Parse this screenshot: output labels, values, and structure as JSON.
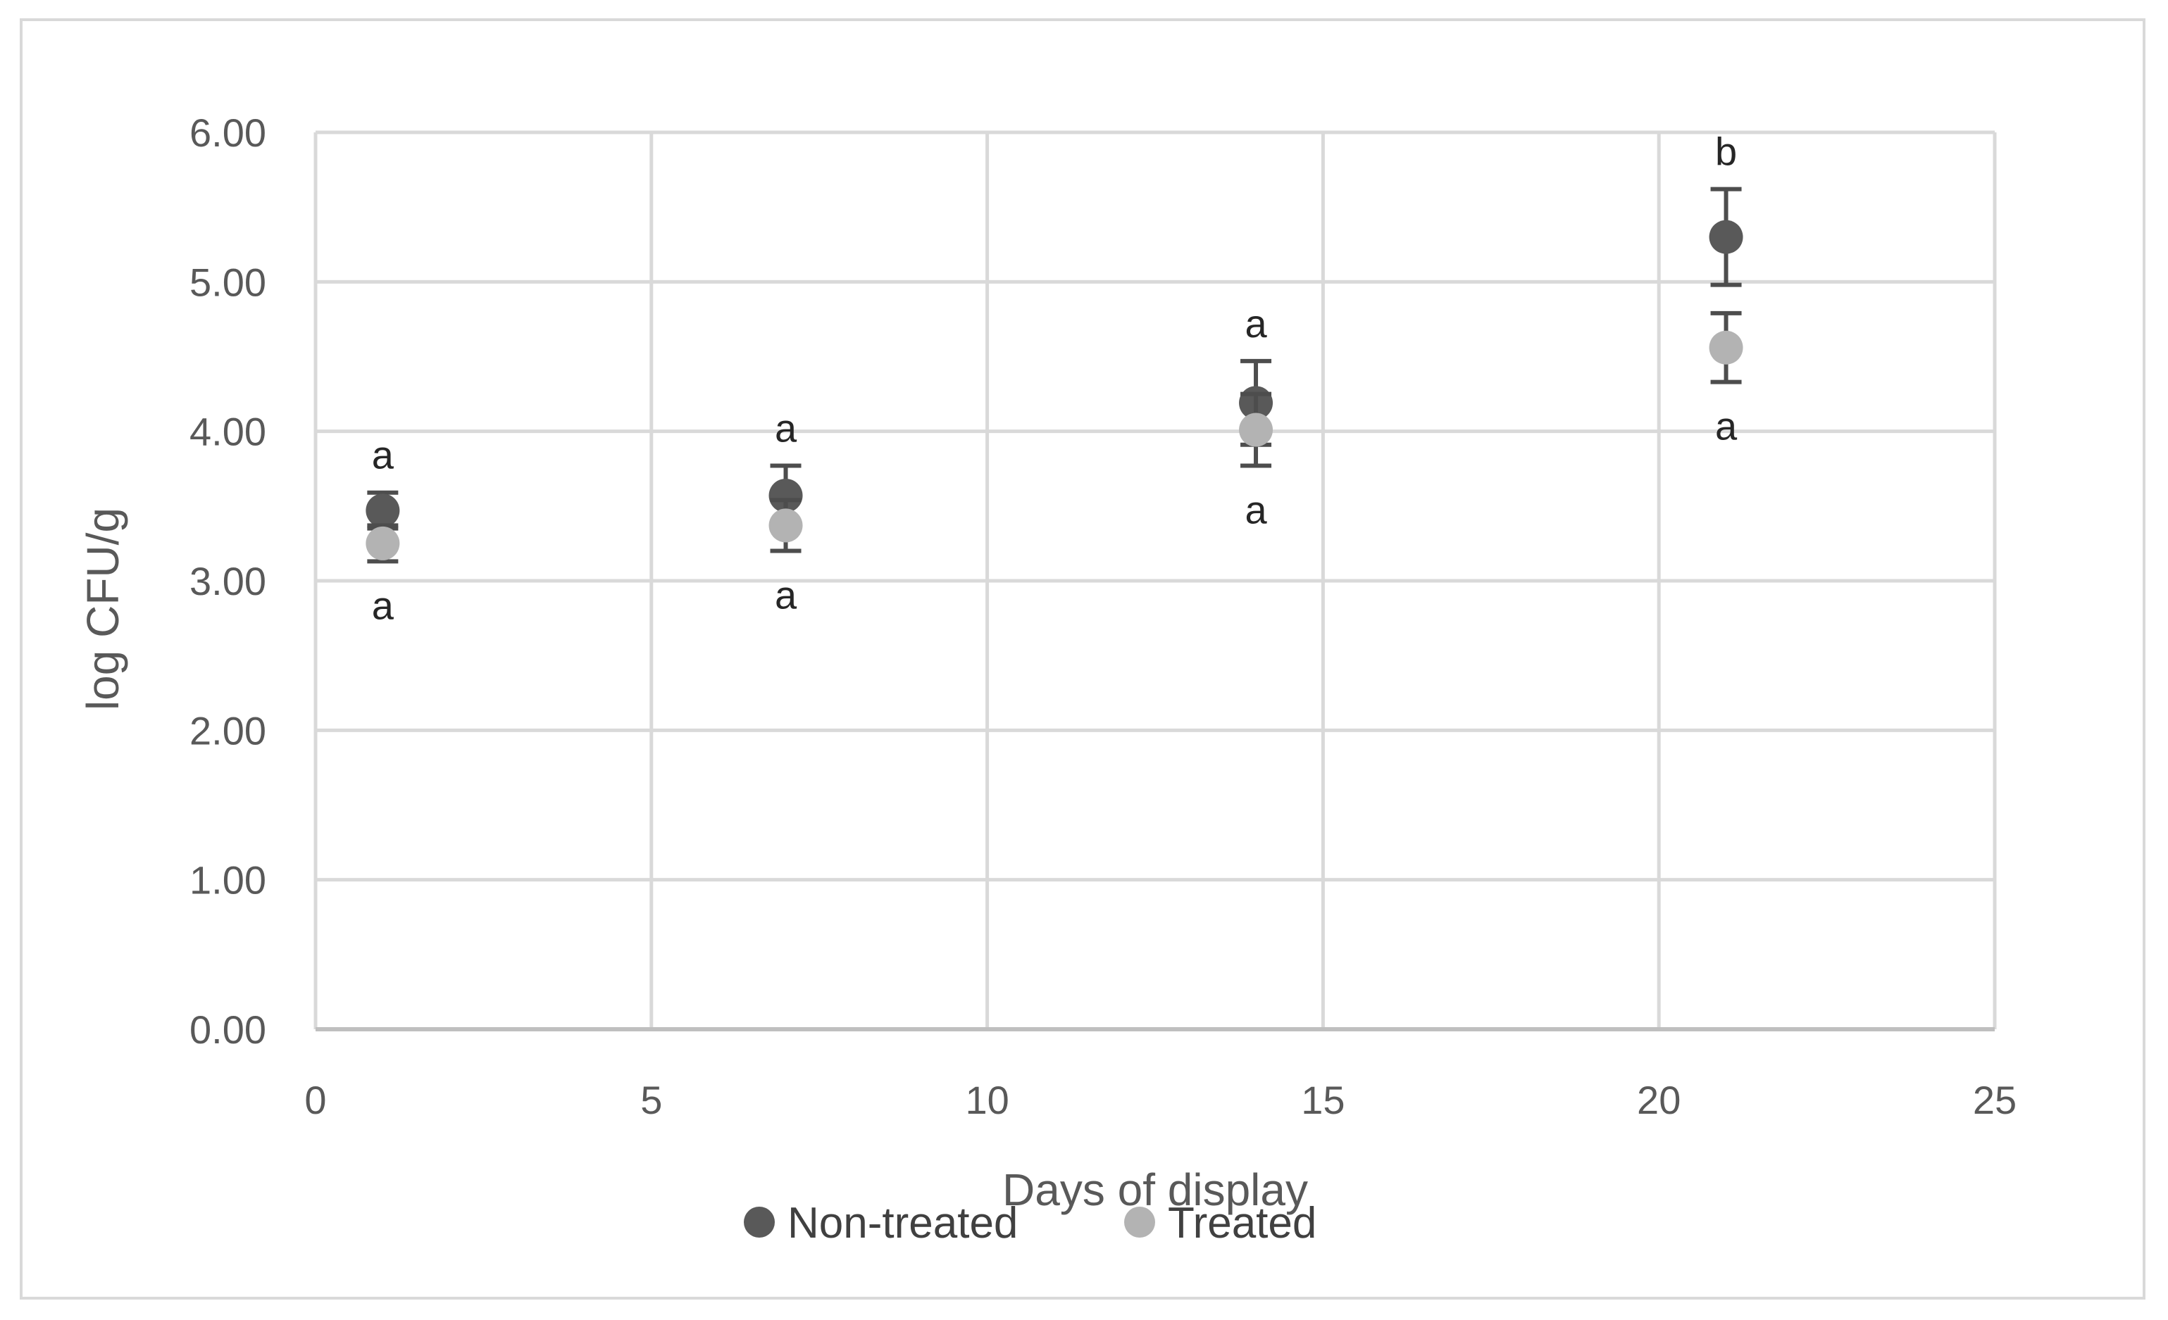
{
  "chart_data": {
    "type": "scatter",
    "title": "",
    "xlabel": "Days of display",
    "ylabel": "log  CFU/g",
    "xlim": [
      0,
      25
    ],
    "ylim": [
      0,
      6
    ],
    "x_ticks": [
      "0",
      "5",
      "10",
      "15",
      "20",
      "25"
    ],
    "y_ticks": [
      "0.00",
      "1.00",
      "2.00",
      "3.00",
      "4.00",
      "5.00",
      "6.00"
    ],
    "grid": true,
    "legend_position": "bottom",
    "series": [
      {
        "name": "Non-treated",
        "color": "#595959",
        "x": [
          1,
          7,
          14,
          21
        ],
        "y": [
          3.47,
          3.57,
          4.19,
          5.3
        ],
        "error": [
          0.12,
          0.2,
          0.28,
          0.32
        ],
        "letters": [
          "a",
          "a",
          "a",
          "b"
        ],
        "letter_side": "above"
      },
      {
        "name": "Treated",
        "color": "#b3b3b3",
        "x": [
          1,
          7,
          14,
          21
        ],
        "y": [
          3.25,
          3.37,
          4.01,
          4.56
        ],
        "error": [
          0.12,
          0.17,
          0.24,
          0.23
        ],
        "letters": [
          "a",
          "a",
          "a",
          "a"
        ],
        "letter_side": "below"
      }
    ]
  }
}
